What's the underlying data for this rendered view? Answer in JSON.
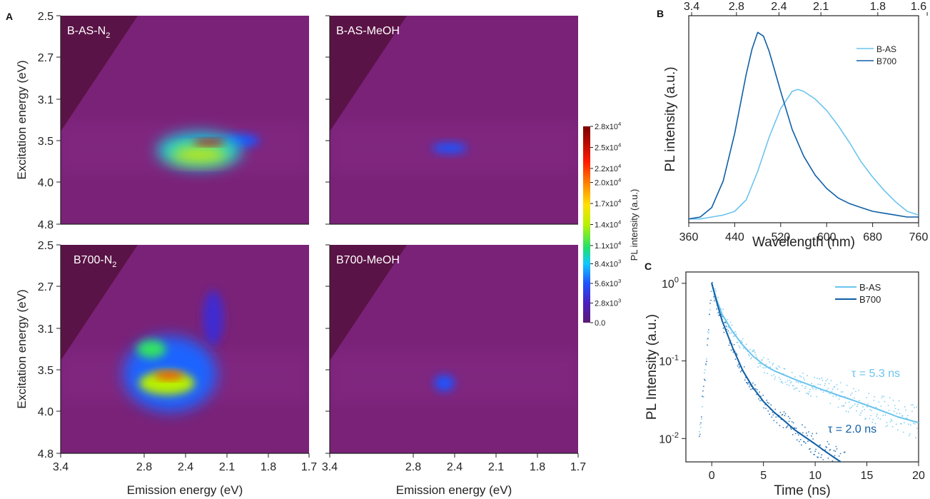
{
  "panel_letters": {
    "A": "A",
    "B": "B",
    "C": "C"
  },
  "colorbar": {
    "label": "PL intensity (a.u.)",
    "ticks": [
      {
        "mant": "2.8x10",
        "exp": "4",
        "v": 28000
      },
      {
        "mant": "2.5x10",
        "exp": "4",
        "v": 25000
      },
      {
        "mant": "2.2x10",
        "exp": "4",
        "v": 22000
      },
      {
        "mant": "2.0x10",
        "exp": "4",
        "v": 20000
      },
      {
        "mant": "1.7x10",
        "exp": "4",
        "v": 17000
      },
      {
        "mant": "1.4x10",
        "exp": "4",
        "v": 14000
      },
      {
        "mant": "1.1x10",
        "exp": "4",
        "v": 11000
      },
      {
        "mant": "8.4x10",
        "exp": "3",
        "v": 8400
      },
      {
        "mant": "5.6x10",
        "exp": "3",
        "v": 5600
      },
      {
        "mant": "2.8x10",
        "exp": "3",
        "v": 2800
      },
      {
        "mant": "0.0",
        "exp": "",
        "v": 0
      }
    ]
  },
  "chart_data": [
    {
      "id": "A",
      "type": "heatmap",
      "xlabel": "Emission energy (eV)",
      "ylabel": "Excitation energy (eV)",
      "x_ticks": [
        "3.4",
        "2.8",
        "2.4",
        "2.1",
        "1.8",
        "1.7"
      ],
      "y_ticks": [
        "2.5",
        "2.7",
        "3.1",
        "3.5",
        "4.0",
        "4.8"
      ],
      "colorscale_range": [
        0,
        28000
      ],
      "maps": [
        {
          "label_main": "B-AS-N",
          "label_sub": "2",
          "peak_intensity": 28000,
          "blobs": [
            {
              "emission_eV": 2.23,
              "excitation_eV": 3.52,
              "intensity": 25000,
              "rx": 0.11,
              "ry": 0.03
            },
            {
              "emission_eV": 2.3,
              "excitation_eV": 3.67,
              "intensity": 15000,
              "rx": 0.2,
              "ry": 0.09
            },
            {
              "emission_eV": 2.3,
              "excitation_eV": 3.62,
              "intensity": 9000,
              "rx": 0.29,
              "ry": 0.2
            },
            {
              "emission_eV": 2.0,
              "excitation_eV": 3.5,
              "intensity": 5600,
              "rx": 0.13,
              "ry": 0.07
            }
          ]
        },
        {
          "label_main": "B-AS-MeOH",
          "label_sub": "",
          "peak_intensity": 5600,
          "blobs": [
            {
              "emission_eV": 2.45,
              "excitation_eV": 3.59,
              "intensity": 5600,
              "rx": 0.12,
              "ry": 0.06
            }
          ]
        },
        {
          "label_main": "B700-N",
          "label_sub": "2",
          "peak_intensity": 28000,
          "blobs": [
            {
              "emission_eV": 2.56,
              "excitation_eV": 3.57,
              "intensity": 22000,
              "rx": 0.1,
              "ry": 0.04
            },
            {
              "emission_eV": 2.58,
              "excitation_eV": 3.66,
              "intensity": 14000,
              "rx": 0.19,
              "ry": 0.13
            },
            {
              "emission_eV": 2.73,
              "excitation_eV": 3.3,
              "intensity": 11000,
              "rx": 0.1,
              "ry": 0.1
            },
            {
              "emission_eV": 2.55,
              "excitation_eV": 3.55,
              "intensity": 6000,
              "rx": 0.32,
              "ry": 0.42
            },
            {
              "emission_eV": 2.2,
              "excitation_eV": 3.0,
              "intensity": 3500,
              "rx": 0.07,
              "ry": 0.3
            }
          ]
        },
        {
          "label_main": "B700-MeOH",
          "label_sub": "",
          "peak_intensity": 5600,
          "blobs": [
            {
              "emission_eV": 2.5,
              "excitation_eV": 3.66,
              "intensity": 5600,
              "rx": 0.07,
              "ry": 0.09
            }
          ]
        }
      ]
    },
    {
      "id": "B",
      "type": "line",
      "xlabel": "Wavelength (nm)",
      "ylabel": "PL intensity (a.u.)",
      "x_ticks": [
        360,
        440,
        520,
        600,
        680,
        760
      ],
      "top_ticks": [
        "3.4",
        "2.8",
        "2.4",
        "2.1",
        "1.8",
        "1.6"
      ],
      "top_tick_wavelengths": [
        365,
        443,
        517,
        590,
        689,
        775
      ],
      "xlim": [
        360,
        760
      ],
      "ylim": [
        0,
        1.05
      ],
      "series": [
        {
          "name": "B-AS",
          "color": "#6cc4ee",
          "x": [
            360,
            380,
            400,
            420,
            440,
            460,
            480,
            500,
            520,
            540,
            550,
            560,
            580,
            600,
            620,
            640,
            660,
            680,
            700,
            720,
            740,
            760
          ],
          "y": [
            0.02,
            0.02,
            0.03,
            0.04,
            0.06,
            0.12,
            0.27,
            0.45,
            0.6,
            0.69,
            0.7,
            0.69,
            0.65,
            0.59,
            0.51,
            0.42,
            0.32,
            0.24,
            0.17,
            0.11,
            0.06,
            0.04
          ]
        },
        {
          "name": "B700",
          "color": "#0f5fa6",
          "x": [
            360,
            380,
            400,
            420,
            440,
            460,
            470,
            480,
            490,
            500,
            520,
            540,
            560,
            580,
            600,
            620,
            640,
            660,
            680,
            700,
            720,
            740,
            760
          ],
          "y": [
            0.02,
            0.03,
            0.08,
            0.22,
            0.47,
            0.78,
            0.91,
            1.0,
            0.98,
            0.9,
            0.69,
            0.49,
            0.35,
            0.25,
            0.18,
            0.13,
            0.1,
            0.08,
            0.06,
            0.05,
            0.04,
            0.03,
            0.03
          ]
        }
      ]
    },
    {
      "id": "C",
      "type": "line",
      "xlabel": "Time (ns)",
      "ylabel": "PL Intensity (a.u.)",
      "yscale": "log",
      "xlim": [
        -2.5,
        20
      ],
      "ylim": [
        0.005,
        1.4
      ],
      "x_ticks": [
        0,
        5,
        10,
        15,
        20
      ],
      "y_ticks": [
        {
          "mant": "10",
          "exp": "0",
          "v": 1
        },
        {
          "mant": "10",
          "exp": "-1",
          "v": 0.1
        },
        {
          "mant": "10",
          "exp": "-2",
          "v": 0.01
        }
      ],
      "series": [
        {
          "name": "B-AS",
          "color": "#6cc4ee",
          "tau_label": "τ = 5.3 ns",
          "x": [
            -1.5,
            -1,
            -0.5,
            0,
            0.5,
            1,
            2,
            3,
            4,
            5,
            6,
            8,
            10,
            12,
            14,
            16,
            18,
            20
          ],
          "y": [
            0.006,
            0.02,
            0.12,
            1.0,
            0.6,
            0.4,
            0.24,
            0.16,
            0.115,
            0.09,
            0.075,
            0.058,
            0.046,
            0.037,
            0.03,
            0.024,
            0.019,
            0.016
          ]
        },
        {
          "name": "B700",
          "color": "#0f5fa6",
          "tau_label": "τ = 2.0 ns",
          "x": [
            -1.5,
            -1,
            -0.5,
            0,
            0.5,
            1,
            2,
            3,
            4,
            5,
            6,
            7,
            8,
            9,
            10,
            11,
            12,
            13
          ],
          "y": [
            0.006,
            0.02,
            0.12,
            1.0,
            0.56,
            0.33,
            0.15,
            0.075,
            0.045,
            0.03,
            0.022,
            0.017,
            0.013,
            0.0105,
            0.0085,
            0.0068,
            0.0055,
            0.0045
          ]
        }
      ]
    }
  ]
}
